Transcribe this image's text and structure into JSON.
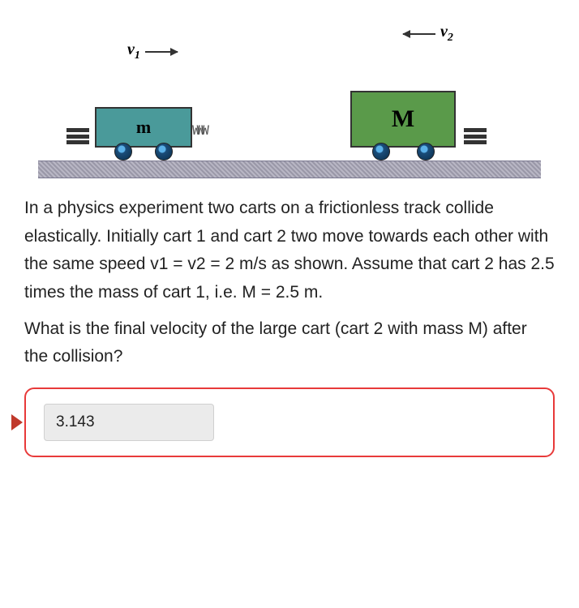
{
  "diagram": {
    "cart1": {
      "label": "m",
      "velocity_label": "v",
      "velocity_sub": "1",
      "body_color": "#4a9a9a"
    },
    "cart2": {
      "label": "M",
      "velocity_label": "v",
      "velocity_sub": "2",
      "body_color": "#5a9a4a"
    },
    "track_color": "#a8a6b8"
  },
  "question": {
    "paragraph1": "In a physics experiment two carts on a frictionless track collide elastically. Initially cart 1 and cart 2 two move towards each other with the same speed v1 = v2 = 2 m/s as shown. Assume that cart 2 has 2.5 times the mass of cart 1, i.e. M = 2.5 m.",
    "paragraph2": "What is the final velocity of the large cart (cart 2 with mass M) after the collision?"
  },
  "answer": {
    "value": "3.143"
  },
  "style": {
    "answer_border": "#e83a3a",
    "input_bg": "#ebebeb",
    "text_color": "#222222"
  }
}
